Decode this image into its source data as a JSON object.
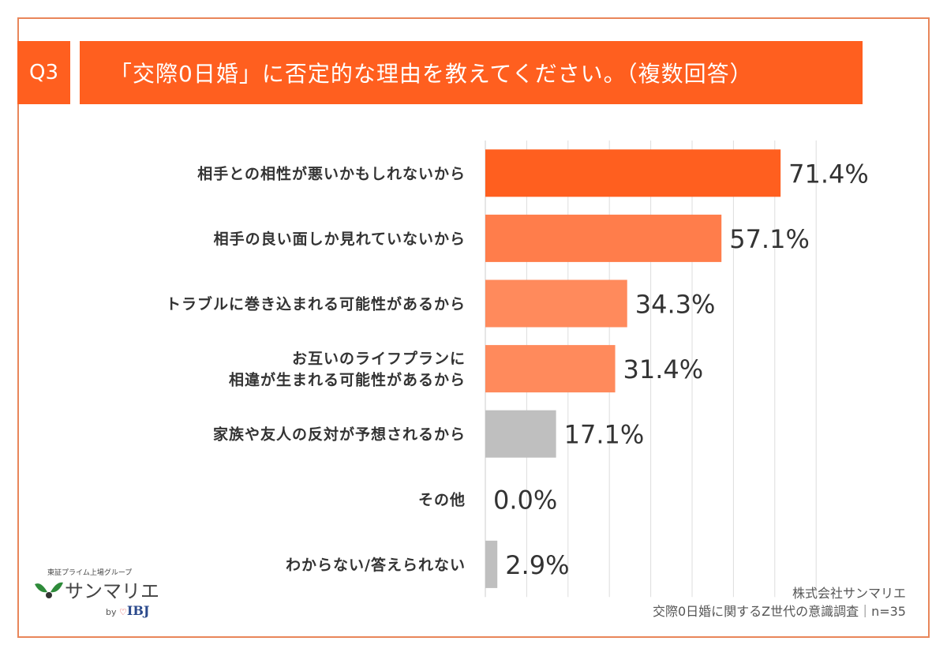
{
  "header": {
    "question_no": "Q3",
    "title": "「交際0日婚」に否定的な理由を教えてください。（複数回答）"
  },
  "chart_data": {
    "type": "bar",
    "orientation": "horizontal",
    "categories": [
      [
        "相手との相性が悪いかもしれないから"
      ],
      [
        "相手の良い面しか見れていないから"
      ],
      [
        "トラブルに巻き込まれる可能性があるから"
      ],
      [
        "お互いのライフプランに",
        "相違が生まれる可能性があるから"
      ],
      [
        "家族や友人の反対が予想されるから"
      ],
      [
        "その他"
      ],
      [
        "わからない/答えられない"
      ]
    ],
    "values": [
      71.4,
      57.1,
      34.3,
      31.4,
      17.1,
      0.0,
      2.9
    ],
    "labels": [
      "71.4%",
      "57.1%",
      "34.3%",
      "31.4%",
      "17.1%",
      "0.0%",
      "2.9%"
    ],
    "colors": [
      "#FF5F1F",
      "#FF7D4B",
      "#FF8A5C",
      "#FF8A5C",
      "#BFBFBF",
      "#BFBFBF",
      "#BFBFBF"
    ],
    "xlim": [
      0,
      80
    ],
    "grid": true,
    "grid_step": 10
  },
  "source": {
    "company": "株式会社サンマリエ",
    "survey": "交際0日婚に関するZ世代の意識調査｜n=35"
  },
  "logo": {
    "group": "東証プライム上場グループ",
    "name": "サンマリエ",
    "by": "by",
    "brand": "IBJ"
  }
}
